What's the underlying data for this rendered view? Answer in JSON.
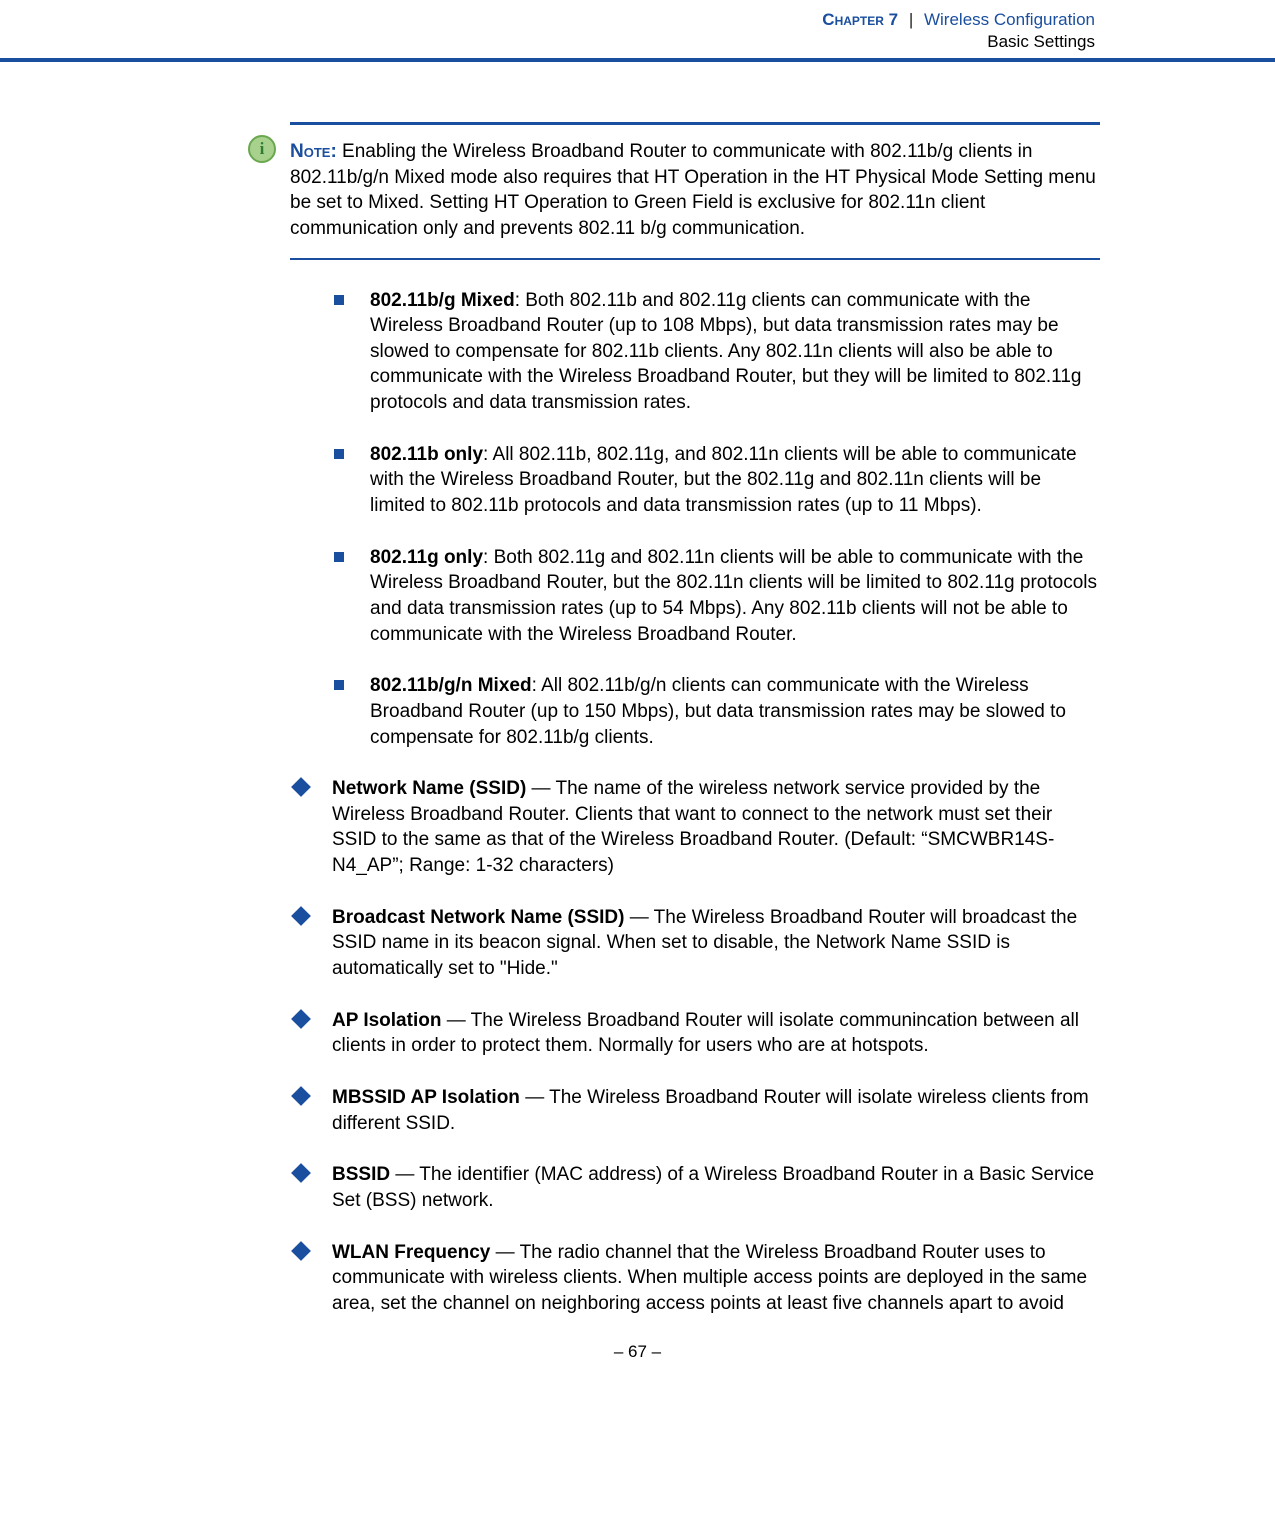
{
  "header": {
    "chapter": "Chapter 7",
    "separator": "|",
    "title": "Wireless Configuration",
    "subtitle": "Basic Settings"
  },
  "note": {
    "label": "Note:",
    "text": " Enabling the Wireless Broadband Router to communicate with 802.11b/g clients in 802.11b/g/n Mixed mode also requires that HT Operation in the HT Physical Mode Setting menu be set to Mixed. Setting HT Operation to Green Field is exclusive for 802.11n client communication only and prevents 802.11 b/g communication."
  },
  "subBullets": [
    {
      "term": "802.11b/g Mixed",
      "desc": ": Both 802.11b and 802.11g clients can communicate with the Wireless Broadband Router (up to 108 Mbps), but data transmission rates may be slowed to compensate for 802.11b clients. Any 802.11n clients will also be able to communicate with the Wireless Broadband Router, but they will be limited to 802.11g protocols and data transmission rates."
    },
    {
      "term": "802.11b only",
      "desc": ": All 802.11b, 802.11g, and 802.11n clients will be able to communicate with the Wireless Broadband Router, but the 802.11g and 802.11n clients will be limited to 802.11b protocols and data transmission rates (up to 11 Mbps)."
    },
    {
      "term": "802.11g only",
      "desc": ": Both 802.11g and 802.11n clients will be able to communicate with the Wireless Broadband Router, but the 802.11n clients will be limited to 802.11g protocols and data transmission rates (up to 54 Mbps). Any 802.11b clients will not be able to communicate with the Wireless Broadband Router."
    },
    {
      "term": "802.11b/g/n Mixed",
      "desc": ": All 802.11b/g/n clients can communicate with the Wireless Broadband Router (up to 150 Mbps), but data transmission rates may be slowed to compensate for 802.11b/g clients."
    }
  ],
  "mainBullets": [
    {
      "term": "Network Name (SSID)",
      "desc": " — The name of the wireless network service provided by the Wireless Broadband Router. Clients that want to connect to the network must set their SSID to the same as that of the Wireless Broadband Router. (Default: “SMCWBR14S-N4_AP”; Range: 1-32 characters)"
    },
    {
      "term": "Broadcast Network Name (SSID)",
      "desc": " — The Wireless Broadband Router will broadcast the SSID name in its beacon signal. When set to disable, the Network Name SSID is automatically set to \"Hide.\""
    },
    {
      "term": "AP Isolation",
      "desc": " — The Wireless Broadband Router will isolate communincation between all clients in order to protect them. Normally for users who are at hotspots."
    },
    {
      "term": "MBSSID AP Isolation",
      "desc": " — The Wireless Broadband Router will isolate wireless clients from different SSID."
    },
    {
      "term": "BSSID",
      "desc": " — The identifier (MAC address) of a Wireless Broadband Router in a Basic Service Set (BSS) network."
    },
    {
      "term": "WLAN Frequency",
      "desc": " — The radio channel that the Wireless Broadband Router uses to communicate with wireless clients. When multiple access points are deployed in the same area, set the channel on neighboring access points at least five channels apart to avoid"
    }
  ],
  "footer": {
    "page": "–  67  –"
  },
  "colors": {
    "accent": "#1a4e9e",
    "noteIconFill": "#a9d18e",
    "noteIconBorder": "#6aa84f",
    "noteIconText": "#2e7d32",
    "text": "#000000",
    "background": "#ffffff"
  }
}
